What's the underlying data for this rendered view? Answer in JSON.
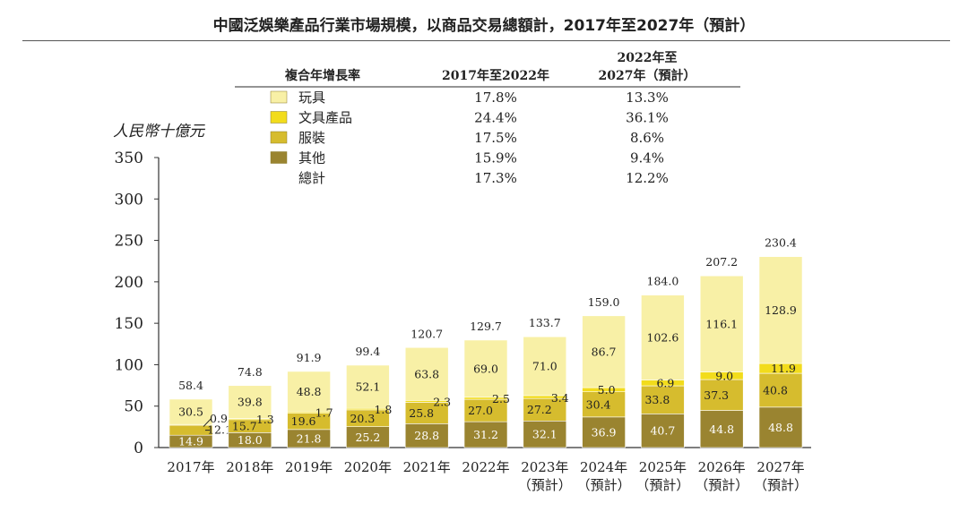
{
  "title": "中國泛娛樂產品行業市場規模，以商品交易總額計，2017年至2027年（預計）",
  "chart_data": {
    "type": "bar",
    "stacked": true,
    "ylabel": "人民幣十億元",
    "ylim": [
      0,
      350
    ],
    "yticks": [
      0,
      50,
      100,
      150,
      200,
      250,
      300,
      350
    ],
    "categories": [
      [
        "2017年"
      ],
      [
        "2018年"
      ],
      [
        "2019年"
      ],
      [
        "2020年"
      ],
      [
        "2021年"
      ],
      [
        "2022年"
      ],
      [
        "2023年",
        "（預計）"
      ],
      [
        "2024年",
        "（預計）"
      ],
      [
        "2025年",
        "（預計）"
      ],
      [
        "2026年",
        "（預計）"
      ],
      [
        "2027年",
        "（預計）"
      ]
    ],
    "series": [
      {
        "name": "其他",
        "color": "#9a8430",
        "values": [
          14.9,
          18.0,
          21.8,
          25.2,
          28.8,
          31.2,
          32.1,
          36.9,
          40.7,
          44.8,
          48.8
        ],
        "labels": [
          "14.9",
          "18.0",
          "21.8",
          "25.2",
          "28.8",
          "31.2",
          "32.1",
          "36.9",
          "40.7",
          "44.8",
          "48.8"
        ]
      },
      {
        "name": "服裝",
        "color": "#d6bc2e",
        "values": [
          12.1,
          15.7,
          19.6,
          20.3,
          25.8,
          27.0,
          27.2,
          30.4,
          33.8,
          37.3,
          40.8
        ],
        "labels": [
          "12.1",
          "15.7",
          "19.6",
          "20.3",
          "25.8",
          "27.0",
          "27.2",
          "30.4",
          "33.8",
          "37.3",
          "40.8"
        ]
      },
      {
        "name": "文具產品",
        "color": "#f2dc1c",
        "values": [
          0.9,
          1.3,
          1.7,
          1.8,
          2.3,
          2.5,
          3.4,
          5.0,
          6.9,
          9.0,
          11.9
        ],
        "labels": [
          "0.9",
          "1.3",
          "1.7",
          "1.8",
          "2.3",
          "2.5",
          "3.4",
          "5.0",
          "6.9",
          "9.0",
          "11.9"
        ]
      },
      {
        "name": "玩具",
        "color": "#f8f0a6",
        "values": [
          30.5,
          39.8,
          48.8,
          52.1,
          63.8,
          69.0,
          71.0,
          86.7,
          102.6,
          116.1,
          128.9
        ],
        "labels": [
          "30.5",
          "39.8",
          "48.8",
          "52.1",
          "63.8",
          "69.0",
          "71.0",
          "86.7",
          "102.6",
          "116.1",
          "128.9"
        ]
      }
    ],
    "totals": [
      58.4,
      74.8,
      91.9,
      99.4,
      120.7,
      129.7,
      133.7,
      159.0,
      184.0,
      207.2,
      230.4
    ],
    "total_labels": [
      "58.4",
      "74.8",
      "91.9",
      "99.4",
      "120.7",
      "129.7",
      "133.7",
      "159.0",
      "184.0",
      "207.2",
      "230.4"
    ]
  },
  "cagr_table": {
    "header": [
      "複合年增長率",
      "2017年至2022年",
      "2022年至",
      "2027年（預計）"
    ],
    "rows": [
      {
        "name": "玩具",
        "color": "#f8f0a6",
        "a": "17.8%",
        "b": "13.3%"
      },
      {
        "name": "文具產品",
        "color": "#f2dc1c",
        "a": "24.4%",
        "b": "36.1%"
      },
      {
        "name": "服裝",
        "color": "#d6bc2e",
        "a": "17.5%",
        "b": "8.6%"
      },
      {
        "name": "其他",
        "color": "#9a8430",
        "a": "15.9%",
        "b": "9.4%"
      },
      {
        "name": "總計",
        "color": "",
        "a": "17.3%",
        "b": "12.2%"
      }
    ]
  }
}
